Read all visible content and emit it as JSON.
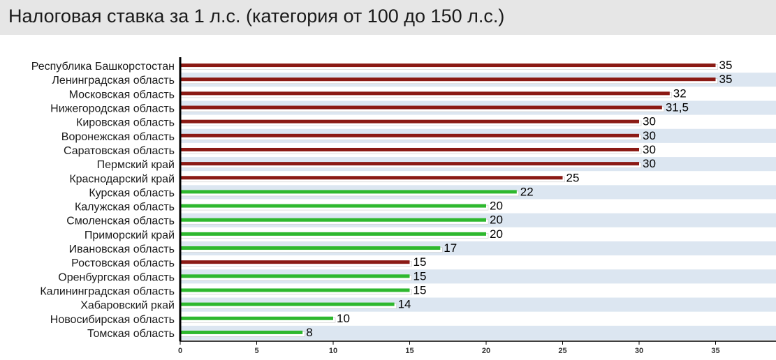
{
  "title": "Налоговая ставка за 1 л.с. (категория от 100 до 150 л.с.)",
  "colors": {
    "high": "#8b1a14",
    "low": "#2eb82e",
    "stripe": "#dce6f1",
    "axis": "#000000",
    "title_bg": "#e6e6e6"
  },
  "chart_data": {
    "type": "bar",
    "orientation": "horizontal",
    "title": "Налоговая ставка за 1 л.с. (категория от 100 до 150 л.с.)",
    "xlabel": "",
    "ylabel": "",
    "xlim": [
      0,
      38
    ],
    "xticks": [
      0,
      5,
      10,
      15,
      20,
      25,
      30,
      35
    ],
    "grid": false,
    "legend": "none",
    "categories": [
      "Республика Башкорстостан",
      "Ленинградская область",
      "Московская область",
      "Нижегородская область",
      "Кировская область",
      "Воронежская область",
      "Саратовская область",
      "Пермский край",
      "Краснодарский край",
      "Курская область",
      "Калужская область",
      "Смоленская область",
      "Приморский край",
      "Ивановская область",
      "Ростовская область",
      "Оренбургская область",
      "Калининградская область",
      "Хабаровский ркай",
      "Новосибирская область",
      "Томская область"
    ],
    "values": [
      35,
      35,
      32,
      31.5,
      30,
      30,
      30,
      30,
      25,
      22,
      20,
      20,
      20,
      17,
      15,
      15,
      15,
      14,
      10,
      8
    ],
    "labels": [
      "35",
      "35",
      "32",
      "31,5",
      "30",
      "30",
      "30",
      "30",
      "25",
      "22",
      "20",
      "20",
      "20",
      "17",
      "15",
      "15",
      "15",
      "14",
      "10",
      "8"
    ],
    "bar_colors": [
      "high",
      "high",
      "high",
      "high",
      "high",
      "high",
      "high",
      "high",
      "high",
      "low",
      "low",
      "low",
      "low",
      "low",
      "high",
      "low",
      "low",
      "low",
      "low",
      "low"
    ]
  }
}
